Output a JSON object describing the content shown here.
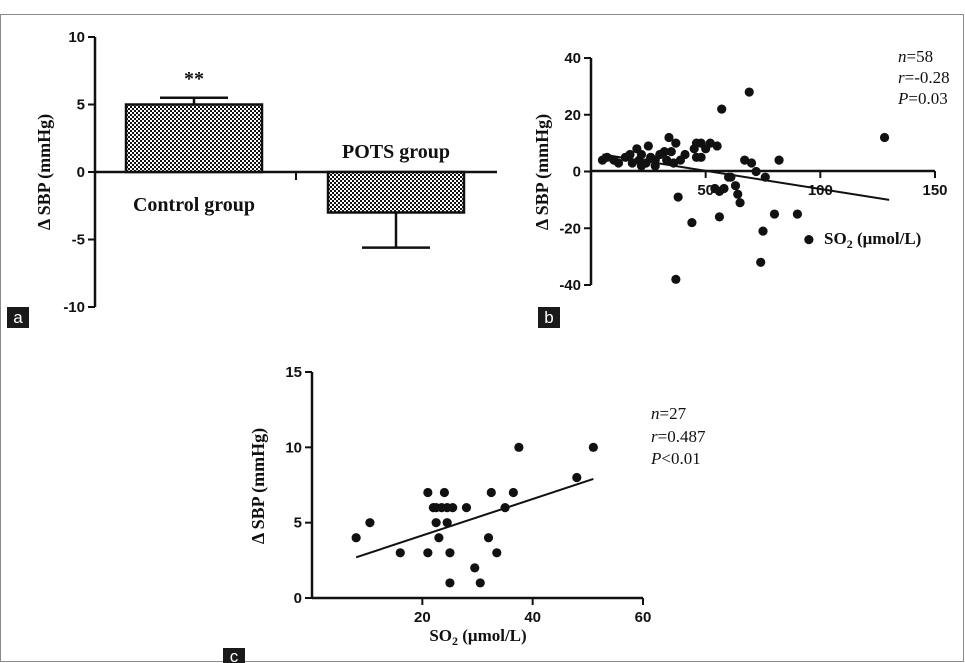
{
  "colors": {
    "ink": "#111111",
    "panel_tag_bg": "#1a1a1a",
    "border": "#8a8a8a"
  },
  "panels": [
    {
      "tag": "a"
    },
    {
      "tag": "b"
    },
    {
      "tag": "c"
    }
  ],
  "chart_data": [
    {
      "type": "bar",
      "panel": "a",
      "ylabel": "Δ SBP (mmHg)",
      "xlabel": "",
      "ylim": [
        -10,
        10
      ],
      "yticks": [
        10,
        5,
        0,
        -5,
        -10
      ],
      "categories": [
        "Control group",
        "POTS group"
      ],
      "values": [
        5.0,
        -3.0
      ],
      "error_bars": [
        0.5,
        2.6
      ],
      "annotations": [
        {
          "category": "Control group",
          "text": "**"
        }
      ],
      "fill": "checkered",
      "grid": false
    },
    {
      "type": "scatter",
      "panel": "b",
      "ylabel": "Δ SBP (mmHg)",
      "xlabel": "SO2 (μmol/L)",
      "xlim": [
        0,
        150
      ],
      "ylim": [
        -40,
        40
      ],
      "xticks": [
        50,
        100,
        150
      ],
      "yticks": [
        40,
        20,
        0,
        -20,
        -40
      ],
      "stats": {
        "n": "58",
        "r": "-0.28",
        "p": "0.03",
        "p_op": "="
      },
      "fit_line": {
        "x": [
          5,
          130
        ],
        "y": [
          6,
          -10
        ]
      },
      "points": [
        [
          5,
          4
        ],
        [
          7,
          5
        ],
        [
          10,
          4
        ],
        [
          12,
          3
        ],
        [
          15,
          5
        ],
        [
          17,
          6
        ],
        [
          18,
          3
        ],
        [
          20,
          8
        ],
        [
          21,
          4
        ],
        [
          22,
          6
        ],
        [
          22,
          2
        ],
        [
          24,
          3
        ],
        [
          25,
          9
        ],
        [
          26,
          5
        ],
        [
          28,
          4
        ],
        [
          28,
          2
        ],
        [
          30,
          6
        ],
        [
          32,
          7
        ],
        [
          33,
          4
        ],
        [
          34,
          12
        ],
        [
          35,
          7
        ],
        [
          36,
          3
        ],
        [
          37,
          10
        ],
        [
          38,
          -9
        ],
        [
          39,
          4
        ],
        [
          37,
          -38
        ],
        [
          44,
          -18
        ],
        [
          45,
          8
        ],
        [
          46,
          10
        ],
        [
          46,
          5
        ],
        [
          48,
          10
        ],
        [
          48,
          5
        ],
        [
          52,
          10
        ],
        [
          55,
          9
        ],
        [
          56,
          -16
        ],
        [
          56,
          -7
        ],
        [
          58,
          -6
        ],
        [
          57,
          22
        ],
        [
          60,
          -2
        ],
        [
          61,
          -2
        ],
        [
          63,
          -5
        ],
        [
          64,
          -8
        ],
        [
          65,
          -11
        ],
        [
          67,
          4
        ],
        [
          69,
          28
        ],
        [
          70,
          3
        ],
        [
          72,
          0
        ],
        [
          74,
          -32
        ],
        [
          75,
          -21
        ],
        [
          76,
          -2
        ],
        [
          80,
          -15
        ],
        [
          82,
          4
        ],
        [
          90,
          -15
        ],
        [
          95,
          -24
        ],
        [
          128,
          12
        ],
        [
          54,
          -6
        ],
        [
          50,
          8
        ],
        [
          41,
          6
        ]
      ],
      "grid": false
    },
    {
      "type": "scatter",
      "panel": "c",
      "ylabel": "Δ SBP (mmHg)",
      "xlabel": "SO2 (μmol/L)",
      "xlim": [
        0,
        60
      ],
      "ylim": [
        0,
        15
      ],
      "xticks": [
        20,
        40,
        60
      ],
      "yticks": [
        15,
        10,
        5,
        0
      ],
      "stats": {
        "n": "27",
        "r": "0.487",
        "p": "0.01",
        "p_op": "<"
      },
      "fit_line": {
        "x": [
          8,
          51
        ],
        "y": [
          2.7,
          7.9
        ]
      },
      "points": [
        [
          8,
          4
        ],
        [
          10.5,
          5
        ],
        [
          16,
          3
        ],
        [
          21,
          3
        ],
        [
          21,
          7
        ],
        [
          22,
          6
        ],
        [
          22.5,
          5
        ],
        [
          23,
          4
        ],
        [
          23.5,
          6
        ],
        [
          24,
          7
        ],
        [
          24.5,
          5
        ],
        [
          25,
          1
        ],
        [
          25,
          3
        ],
        [
          25.5,
          6
        ],
        [
          28,
          6
        ],
        [
          29.5,
          2
        ],
        [
          30.5,
          1
        ],
        [
          32,
          4
        ],
        [
          32.5,
          7
        ],
        [
          33.5,
          3
        ],
        [
          35,
          6
        ],
        [
          36.5,
          7
        ],
        [
          37.5,
          10
        ],
        [
          48,
          8
        ],
        [
          51,
          10
        ],
        [
          24.5,
          6
        ],
        [
          22.5,
          6
        ]
      ],
      "grid": false
    }
  ]
}
